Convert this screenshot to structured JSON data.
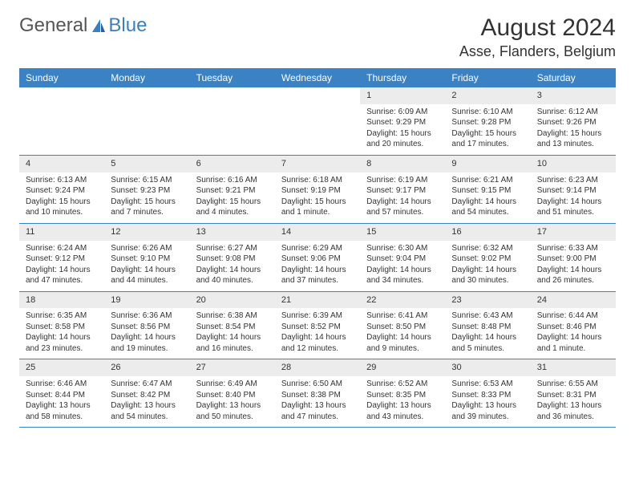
{
  "logo": {
    "part1": "General",
    "part2": "Blue"
  },
  "title": "August 2024",
  "location": "Asse, Flanders, Belgium",
  "colors": {
    "header_bg": "#3a82c4",
    "header_text": "#ffffff",
    "daynum_bg": "#ececec",
    "border": "#3a82c4",
    "text": "#333333",
    "logo_blue": "#3a7fbf"
  },
  "dow": [
    "Sunday",
    "Monday",
    "Tuesday",
    "Wednesday",
    "Thursday",
    "Friday",
    "Saturday"
  ],
  "weeks": [
    [
      {
        "n": "",
        "sr": "",
        "ss": "",
        "dl": ""
      },
      {
        "n": "",
        "sr": "",
        "ss": "",
        "dl": ""
      },
      {
        "n": "",
        "sr": "",
        "ss": "",
        "dl": ""
      },
      {
        "n": "",
        "sr": "",
        "ss": "",
        "dl": ""
      },
      {
        "n": "1",
        "sr": "Sunrise: 6:09 AM",
        "ss": "Sunset: 9:29 PM",
        "dl": "Daylight: 15 hours and 20 minutes."
      },
      {
        "n": "2",
        "sr": "Sunrise: 6:10 AM",
        "ss": "Sunset: 9:28 PM",
        "dl": "Daylight: 15 hours and 17 minutes."
      },
      {
        "n": "3",
        "sr": "Sunrise: 6:12 AM",
        "ss": "Sunset: 9:26 PM",
        "dl": "Daylight: 15 hours and 13 minutes."
      }
    ],
    [
      {
        "n": "4",
        "sr": "Sunrise: 6:13 AM",
        "ss": "Sunset: 9:24 PM",
        "dl": "Daylight: 15 hours and 10 minutes."
      },
      {
        "n": "5",
        "sr": "Sunrise: 6:15 AM",
        "ss": "Sunset: 9:23 PM",
        "dl": "Daylight: 15 hours and 7 minutes."
      },
      {
        "n": "6",
        "sr": "Sunrise: 6:16 AM",
        "ss": "Sunset: 9:21 PM",
        "dl": "Daylight: 15 hours and 4 minutes."
      },
      {
        "n": "7",
        "sr": "Sunrise: 6:18 AM",
        "ss": "Sunset: 9:19 PM",
        "dl": "Daylight: 15 hours and 1 minute."
      },
      {
        "n": "8",
        "sr": "Sunrise: 6:19 AM",
        "ss": "Sunset: 9:17 PM",
        "dl": "Daylight: 14 hours and 57 minutes."
      },
      {
        "n": "9",
        "sr": "Sunrise: 6:21 AM",
        "ss": "Sunset: 9:15 PM",
        "dl": "Daylight: 14 hours and 54 minutes."
      },
      {
        "n": "10",
        "sr": "Sunrise: 6:23 AM",
        "ss": "Sunset: 9:14 PM",
        "dl": "Daylight: 14 hours and 51 minutes."
      }
    ],
    [
      {
        "n": "11",
        "sr": "Sunrise: 6:24 AM",
        "ss": "Sunset: 9:12 PM",
        "dl": "Daylight: 14 hours and 47 minutes."
      },
      {
        "n": "12",
        "sr": "Sunrise: 6:26 AM",
        "ss": "Sunset: 9:10 PM",
        "dl": "Daylight: 14 hours and 44 minutes."
      },
      {
        "n": "13",
        "sr": "Sunrise: 6:27 AM",
        "ss": "Sunset: 9:08 PM",
        "dl": "Daylight: 14 hours and 40 minutes."
      },
      {
        "n": "14",
        "sr": "Sunrise: 6:29 AM",
        "ss": "Sunset: 9:06 PM",
        "dl": "Daylight: 14 hours and 37 minutes."
      },
      {
        "n": "15",
        "sr": "Sunrise: 6:30 AM",
        "ss": "Sunset: 9:04 PM",
        "dl": "Daylight: 14 hours and 34 minutes."
      },
      {
        "n": "16",
        "sr": "Sunrise: 6:32 AM",
        "ss": "Sunset: 9:02 PM",
        "dl": "Daylight: 14 hours and 30 minutes."
      },
      {
        "n": "17",
        "sr": "Sunrise: 6:33 AM",
        "ss": "Sunset: 9:00 PM",
        "dl": "Daylight: 14 hours and 26 minutes."
      }
    ],
    [
      {
        "n": "18",
        "sr": "Sunrise: 6:35 AM",
        "ss": "Sunset: 8:58 PM",
        "dl": "Daylight: 14 hours and 23 minutes."
      },
      {
        "n": "19",
        "sr": "Sunrise: 6:36 AM",
        "ss": "Sunset: 8:56 PM",
        "dl": "Daylight: 14 hours and 19 minutes."
      },
      {
        "n": "20",
        "sr": "Sunrise: 6:38 AM",
        "ss": "Sunset: 8:54 PM",
        "dl": "Daylight: 14 hours and 16 minutes."
      },
      {
        "n": "21",
        "sr": "Sunrise: 6:39 AM",
        "ss": "Sunset: 8:52 PM",
        "dl": "Daylight: 14 hours and 12 minutes."
      },
      {
        "n": "22",
        "sr": "Sunrise: 6:41 AM",
        "ss": "Sunset: 8:50 PM",
        "dl": "Daylight: 14 hours and 9 minutes."
      },
      {
        "n": "23",
        "sr": "Sunrise: 6:43 AM",
        "ss": "Sunset: 8:48 PM",
        "dl": "Daylight: 14 hours and 5 minutes."
      },
      {
        "n": "24",
        "sr": "Sunrise: 6:44 AM",
        "ss": "Sunset: 8:46 PM",
        "dl": "Daylight: 14 hours and 1 minute."
      }
    ],
    [
      {
        "n": "25",
        "sr": "Sunrise: 6:46 AM",
        "ss": "Sunset: 8:44 PM",
        "dl": "Daylight: 13 hours and 58 minutes."
      },
      {
        "n": "26",
        "sr": "Sunrise: 6:47 AM",
        "ss": "Sunset: 8:42 PM",
        "dl": "Daylight: 13 hours and 54 minutes."
      },
      {
        "n": "27",
        "sr": "Sunrise: 6:49 AM",
        "ss": "Sunset: 8:40 PM",
        "dl": "Daylight: 13 hours and 50 minutes."
      },
      {
        "n": "28",
        "sr": "Sunrise: 6:50 AM",
        "ss": "Sunset: 8:38 PM",
        "dl": "Daylight: 13 hours and 47 minutes."
      },
      {
        "n": "29",
        "sr": "Sunrise: 6:52 AM",
        "ss": "Sunset: 8:35 PM",
        "dl": "Daylight: 13 hours and 43 minutes."
      },
      {
        "n": "30",
        "sr": "Sunrise: 6:53 AM",
        "ss": "Sunset: 8:33 PM",
        "dl": "Daylight: 13 hours and 39 minutes."
      },
      {
        "n": "31",
        "sr": "Sunrise: 6:55 AM",
        "ss": "Sunset: 8:31 PM",
        "dl": "Daylight: 13 hours and 36 minutes."
      }
    ]
  ]
}
